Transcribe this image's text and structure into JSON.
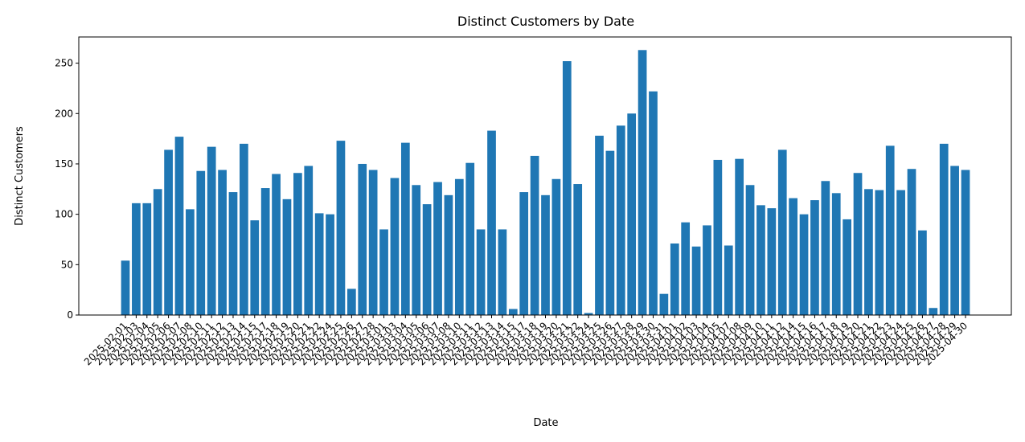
{
  "chart_data": {
    "type": "bar",
    "title": "Distinct Customers by Date",
    "x_label": "Date",
    "y_label": "Distinct Customers",
    "categories": [
      "2025-02-01",
      "2025-02-03",
      "2025-02-04",
      "2025-02-05",
      "2025-02-06",
      "2025-02-07",
      "2025-02-08",
      "2025-02-10",
      "2025-02-11",
      "2025-02-12",
      "2025-02-13",
      "2025-02-14",
      "2025-02-15",
      "2025-02-17",
      "2025-02-18",
      "2025-02-19",
      "2025-02-20",
      "2025-02-21",
      "2025-02-22",
      "2025-02-24",
      "2025-02-25",
      "2025-02-26",
      "2025-02-27",
      "2025-02-28",
      "2025-03-01",
      "2025-03-03",
      "2025-03-04",
      "2025-03-05",
      "2025-03-06",
      "2025-03-07",
      "2025-03-08",
      "2025-03-10",
      "2025-03-11",
      "2025-03-12",
      "2025-03-13",
      "2025-03-14",
      "2025-03-15",
      "2025-03-17",
      "2025-03-18",
      "2025-03-19",
      "2025-03-20",
      "2025-03-21",
      "2025-03-22",
      "2025-03-24",
      "2025-03-25",
      "2025-03-26",
      "2025-03-27",
      "2025-03-28",
      "2025-03-29",
      "2025-03-30",
      "2025-03-31",
      "2025-04-01",
      "2025-04-02",
      "2025-04-03",
      "2025-04-04",
      "2025-04-05",
      "2025-04-07",
      "2025-04-08",
      "2025-04-09",
      "2025-04-10",
      "2025-04-11",
      "2025-04-12",
      "2025-04-14",
      "2025-04-15",
      "2025-04-16",
      "2025-04-17",
      "2025-04-18",
      "2025-04-19",
      "2025-04-20",
      "2025-04-21",
      "2025-04-22",
      "2025-04-23",
      "2025-04-24",
      "2025-04-25",
      "2025-04-26",
      "2025-04-27",
      "2025-04-28",
      "2025-04-29",
      "2025-04-30"
    ],
    "values": [
      54,
      111,
      111,
      125,
      164,
      177,
      105,
      143,
      167,
      144,
      122,
      170,
      94,
      126,
      140,
      115,
      141,
      148,
      101,
      100,
      173,
      26,
      150,
      144,
      85,
      136,
      171,
      129,
      110,
      132,
      119,
      135,
      151,
      85,
      183,
      85,
      6,
      122,
      158,
      119,
      135,
      252,
      130,
      2,
      178,
      163,
      188,
      200,
      263,
      222,
      21,
      71,
      92,
      68,
      89,
      154,
      69,
      155,
      129,
      109,
      106,
      164,
      116,
      100,
      114,
      133,
      121,
      95,
      141,
      125,
      124,
      168,
      124,
      145,
      84,
      7,
      170,
      148,
      144
    ],
    "color": "#1f77b4",
    "ylim": [
      0,
      276
    ],
    "yticks": [
      0,
      50,
      100,
      150,
      200,
      250
    ]
  }
}
